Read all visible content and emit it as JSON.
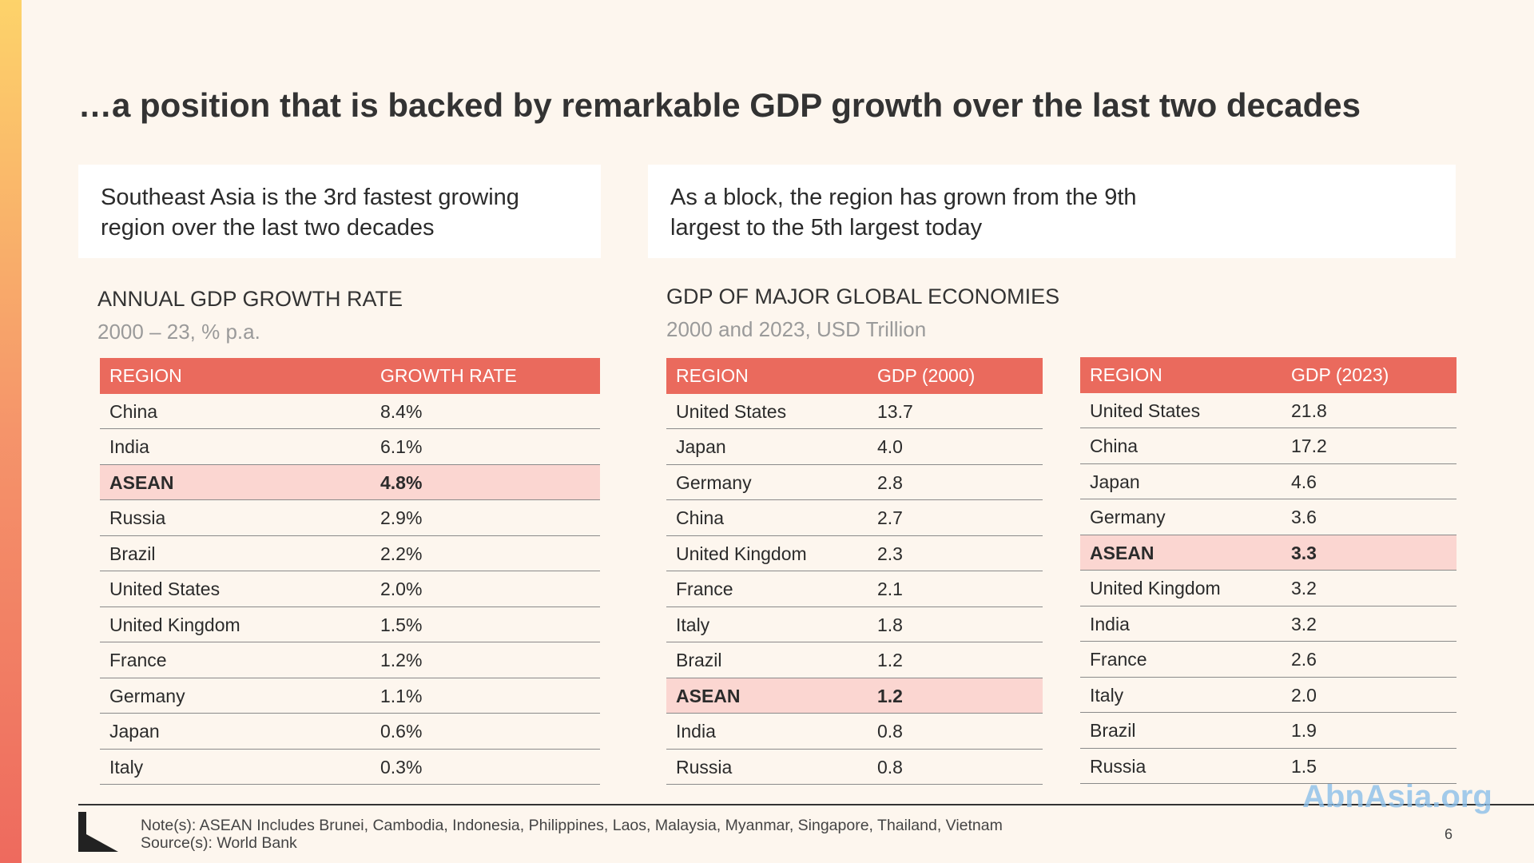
{
  "title": "…a position that is backed by remarkable GDP growth over the last two decades",
  "callouts": [
    "Southeast Asia is the 3rd fastest growing region over the last two decades",
    "As a block, the region has grown from the 9th largest to the 5th largest today"
  ],
  "sections": [
    {
      "heading": "ANNUAL GDP GROWTH RATE",
      "subheading": "2000 – 23, % p.a."
    },
    {
      "heading": "GDP OF MAJOR GLOBAL ECONOMIES",
      "subheading": "2000 and 2023, USD Trillion"
    }
  ],
  "tables": [
    {
      "columns": [
        "REGION",
        "GROWTH RATE"
      ],
      "highlight_row": 2,
      "rows": [
        [
          "China",
          "8.4%"
        ],
        [
          "India",
          "6.1%"
        ],
        [
          "ASEAN",
          "4.8%"
        ],
        [
          "Russia",
          "2.9%"
        ],
        [
          "Brazil",
          "2.2%"
        ],
        [
          "United States",
          "2.0%"
        ],
        [
          "United Kingdom",
          "1.5%"
        ],
        [
          "France",
          "1.2%"
        ],
        [
          "Germany",
          "1.1%"
        ],
        [
          "Japan",
          "0.6%"
        ],
        [
          "Italy",
          "0.3%"
        ]
      ]
    },
    {
      "columns": [
        "REGION",
        "GDP (2000)"
      ],
      "highlight_row": 8,
      "rows": [
        [
          "United States",
          "13.7"
        ],
        [
          "Japan",
          "4.0"
        ],
        [
          "Germany",
          "2.8"
        ],
        [
          "China",
          "2.7"
        ],
        [
          "United Kingdom",
          "2.3"
        ],
        [
          "France",
          "2.1"
        ],
        [
          "Italy",
          "1.8"
        ],
        [
          "Brazil",
          "1.2"
        ],
        [
          "ASEAN",
          "1.2"
        ],
        [
          "India",
          "0.8"
        ],
        [
          "Russia",
          "0.8"
        ]
      ]
    },
    {
      "columns": [
        "REGION",
        "GDP (2023)"
      ],
      "highlight_row": 4,
      "rows": [
        [
          "United States",
          "21.8"
        ],
        [
          "China",
          "17.2"
        ],
        [
          "Japan",
          "4.6"
        ],
        [
          "Germany",
          "3.6"
        ],
        [
          "ASEAN",
          "3.3"
        ],
        [
          "United Kingdom",
          "3.2"
        ],
        [
          "India",
          "3.2"
        ],
        [
          "France",
          "2.6"
        ],
        [
          "Italy",
          "2.0"
        ],
        [
          "Brazil",
          "1.9"
        ],
        [
          "Russia",
          "1.5"
        ]
      ]
    }
  ],
  "footer": {
    "note": "Note(s): ASEAN Includes Brunei, Cambodia, Indonesia, Philippines, Laos, Malaysia, Myanmar, Singapore, Thailand, Vietnam",
    "source": "Source(s): World Bank",
    "page": "6"
  },
  "watermark": "AbnAsia.org"
}
